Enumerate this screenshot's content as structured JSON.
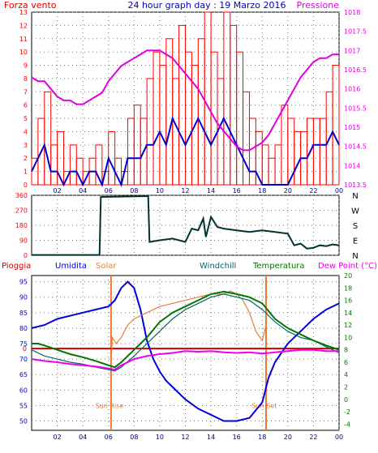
{
  "page": {
    "title": "24 hour graph day : 19 Marzo 2016"
  },
  "colors": {
    "wind": "#ff0000",
    "wind_blue": "#0000cc",
    "pressure": "#e000e0",
    "direction": "#003333",
    "rain": "#cc0000",
    "humidity": "#0000dd",
    "solar": "#e08040",
    "windchill": "#006666",
    "temperature": "#007700",
    "dewpoint": "#ee00ee",
    "sun_line": "#ee7733"
  },
  "chart_data": [
    {
      "type": "line",
      "panel": "wind-pressure",
      "title": "24 hour graph day : 19 Marzo 2016",
      "left_axis_label": "Forza vento",
      "right_axis_label": "Pressione",
      "x_ticks": [
        "02",
        "04",
        "06",
        "08",
        "10",
        "12",
        "14",
        "16",
        "18",
        "20",
        "22",
        "00"
      ],
      "x_tick_hours": [
        2,
        4,
        6,
        8,
        10,
        12,
        14,
        16,
        18,
        20,
        22,
        24
      ],
      "ylim_left": [
        0,
        13
      ],
      "y_ticks_left": [
        "0",
        "1",
        "2",
        "3",
        "4",
        "5",
        "6",
        "7",
        "8",
        "9",
        "10",
        "11",
        "12",
        "13"
      ],
      "ylim_right": [
        1013.5,
        1018
      ],
      "y_ticks_right": [
        "1013.5",
        "1014",
        "1014.5",
        "1015",
        "1015.5",
        "1016",
        "1016.5",
        "1017",
        "1017.5",
        "1018"
      ],
      "series": [
        {
          "key": "pressure",
          "axis": "right",
          "x": [
            0,
            0.5,
            1,
            1.5,
            2,
            2.5,
            3,
            3.5,
            4,
            4.5,
            5,
            5.5,
            6,
            6.5,
            7,
            7.5,
            8,
            8.5,
            9,
            9.5,
            10,
            10.5,
            11,
            11.5,
            12,
            12.5,
            13,
            13.5,
            14,
            14.5,
            15,
            15.5,
            16,
            16.5,
            17,
            17.5,
            18,
            18.5,
            19,
            19.5,
            20,
            20.5,
            21,
            21.5,
            22,
            22.5,
            23,
            23.5,
            24
          ],
          "values": [
            1016.3,
            1016.2,
            1016.2,
            1016.0,
            1015.8,
            1015.7,
            1015.7,
            1015.6,
            1015.6,
            1015.7,
            1015.8,
            1015.9,
            1016.2,
            1016.4,
            1016.6,
            1016.7,
            1016.8,
            1016.9,
            1017.0,
            1017.0,
            1017.0,
            1016.9,
            1016.8,
            1016.6,
            1016.4,
            1016.2,
            1016.0,
            1015.7,
            1015.4,
            1015.1,
            1014.9,
            1014.7,
            1014.5,
            1014.4,
            1014.4,
            1014.5,
            1014.6,
            1014.8,
            1015.1,
            1015.4,
            1015.7,
            1016.0,
            1016.3,
            1016.5,
            1016.7,
            1016.8,
            1016.8,
            1016.9,
            1016.9
          ]
        },
        {
          "key": "wind_gust",
          "axis": "left",
          "x": [
            0,
            0.5,
            1,
            1.5,
            2,
            2.5,
            3,
            3.5,
            4,
            4.5,
            5,
            5.5,
            6,
            6.5,
            7,
            7.5,
            8,
            8.5,
            9,
            9.5,
            10,
            10.5,
            11,
            11.5,
            12,
            12.5,
            13,
            13.5,
            14,
            14.5,
            15,
            15.5,
            16,
            16.5,
            17,
            17.5,
            18,
            18.5,
            19,
            19.5,
            20,
            20.5,
            21,
            21.5,
            22,
            22.5,
            23,
            23.5,
            24
          ],
          "values": [
            2,
            5,
            7,
            3,
            4,
            1,
            3,
            2,
            1,
            2,
            3,
            1,
            4,
            2,
            1,
            5,
            6,
            5,
            8,
            10,
            9,
            11,
            8,
            12,
            10,
            9,
            11,
            13,
            10,
            8,
            13,
            12,
            10,
            7,
            5,
            4,
            3,
            2,
            3,
            6,
            5,
            4,
            4,
            5,
            5,
            5,
            7,
            9,
            6
          ]
        },
        {
          "key": "wind_avg",
          "axis": "left",
          "x": [
            0,
            0.5,
            1,
            1.5,
            2,
            2.5,
            3,
            3.5,
            4,
            4.5,
            5,
            5.5,
            6,
            6.5,
            7,
            7.5,
            8,
            8.5,
            9,
            9.5,
            10,
            10.5,
            11,
            11.5,
            12,
            12.5,
            13,
            13.5,
            14,
            14.5,
            15,
            15.5,
            16,
            16.5,
            17,
            17.5,
            18,
            18.5,
            19,
            19.5,
            20,
            20.5,
            21,
            21.5,
            22,
            22.5,
            23,
            23.5,
            24
          ],
          "values": [
            1,
            2,
            3,
            1,
            1,
            0,
            1,
            1,
            0,
            1,
            1,
            0,
            2,
            1,
            0,
            2,
            2,
            2,
            3,
            3,
            4,
            3,
            5,
            4,
            3,
            4,
            5,
            4,
            3,
            4,
            5,
            4,
            3,
            2,
            1,
            1,
            0,
            0,
            0,
            0,
            0,
            1,
            2,
            2,
            3,
            3,
            3,
            4,
            3
          ]
        }
      ]
    },
    {
      "type": "line",
      "panel": "wind-direction",
      "x_ticks": [
        "02",
        "04",
        "06",
        "08",
        "10",
        "12",
        "14",
        "16",
        "18",
        "20",
        "22",
        "00"
      ],
      "x_tick_hours": [
        2,
        4,
        6,
        8,
        10,
        12,
        14,
        16,
        18,
        20,
        22,
        24
      ],
      "ylim": [
        0,
        360
      ],
      "y_ticks": [
        "0",
        "90",
        "180",
        "270",
        "360"
      ],
      "compass_labels": [
        "N",
        "W",
        "S",
        "E",
        "N"
      ],
      "series": [
        {
          "key": "direction",
          "x": [
            0,
            5.3,
            5.4,
            9.1,
            9.2,
            10,
            11,
            12,
            12.5,
            13,
            13.4,
            13.6,
            14,
            14.5,
            15,
            16,
            17,
            18,
            19,
            20,
            20.5,
            21,
            21.5,
            22,
            22.5,
            23,
            23.5,
            24
          ],
          "values": [
            2,
            2,
            350,
            355,
            80,
            90,
            100,
            80,
            160,
            150,
            220,
            110,
            230,
            170,
            160,
            150,
            140,
            150,
            140,
            130,
            60,
            70,
            40,
            45,
            60,
            55,
            65,
            60
          ]
        }
      ]
    },
    {
      "type": "line",
      "panel": "temperature-humidity",
      "legend": [
        "Pioggia",
        "Umidita",
        "Solar",
        "Windchill",
        "Temperatura",
        "Dew Point (°C)"
      ],
      "x_ticks": [
        "02",
        "04",
        "06",
        "08",
        "10",
        "12",
        "14",
        "16",
        "18",
        "20",
        "22",
        "00"
      ],
      "x_tick_hours": [
        2,
        4,
        6,
        8,
        10,
        12,
        14,
        16,
        18,
        20,
        22,
        24
      ],
      "ylim_left": [
        47,
        97
      ],
      "y_ticks_left": [
        "50",
        "55",
        "60",
        "65",
        "70",
        "75",
        "80",
        "85",
        "90",
        "95"
      ],
      "rain_tick": "0",
      "ylim_right": [
        -5,
        20
      ],
      "y_ticks_right": [
        "-4",
        "-2",
        "0",
        "2",
        "4",
        "6",
        "8",
        "10",
        "12",
        "14",
        "16",
        "18",
        "20"
      ],
      "annotations": [
        {
          "label": "Sun Rise",
          "hour": 6.2
        },
        {
          "label": "Sun Set",
          "hour": 18.3
        }
      ],
      "series": [
        {
          "key": "humidity",
          "axis": "left",
          "x": [
            0,
            1,
            2,
            3,
            4,
            5,
            6,
            6.5,
            7,
            7.5,
            8,
            8.5,
            9,
            9.5,
            10,
            10.5,
            11,
            12,
            13,
            14,
            15,
            16,
            17,
            18,
            18.5,
            19,
            19.5,
            20,
            21,
            22,
            23,
            24
          ],
          "values": [
            80,
            81,
            83,
            84,
            85,
            86,
            87,
            89,
            93,
            95,
            93,
            86,
            76,
            70,
            66,
            63,
            61,
            57,
            54,
            52,
            50,
            50,
            51,
            56,
            64,
            69,
            72,
            75,
            79,
            83,
            86,
            88
          ]
        },
        {
          "key": "solar",
          "axis": "right",
          "x": [
            6.2,
            6.3,
            6.6,
            7,
            7.5,
            8,
            9,
            10,
            11,
            12,
            13,
            14,
            15,
            15.5,
            16,
            16.5,
            17,
            17.5,
            18,
            18.3
          ],
          "values": [
            6,
            10,
            9,
            10,
            12,
            13,
            14,
            15,
            15.5,
            16,
            16.5,
            17,
            17,
            17.5,
            17,
            16,
            14,
            11,
            9.5,
            12
          ]
        },
        {
          "key": "windchill",
          "axis": "right",
          "x": [
            0,
            1,
            2,
            3,
            4,
            5,
            6,
            6.5,
            7,
            8,
            9,
            10,
            11,
            12,
            13,
            14,
            15,
            16,
            17,
            18,
            19,
            20,
            21,
            22,
            23,
            24
          ],
          "values": [
            8,
            7,
            6.5,
            6,
            5.7,
            5.2,
            4.8,
            4.6,
            5.2,
            7,
            9,
            11,
            13,
            14.5,
            15.5,
            16.5,
            17,
            16.5,
            16,
            14.5,
            12.5,
            11,
            10,
            9.5,
            8.5,
            7.5
          ]
        },
        {
          "key": "temperature",
          "axis": "right",
          "x": [
            0,
            0.5,
            1,
            2,
            3,
            4,
            5,
            6,
            6.5,
            7,
            8,
            9,
            10,
            11,
            12,
            13,
            14,
            15,
            16,
            17,
            18,
            19,
            20,
            21,
            22,
            23,
            24
          ],
          "values": [
            9,
            9,
            8.7,
            8,
            7.3,
            6.8,
            6.2,
            5.5,
            5.2,
            6,
            8,
            10,
            12.5,
            14,
            15,
            16,
            17,
            17.4,
            17,
            16.5,
            15.5,
            13,
            11.5,
            10.5,
            9.5,
            8.7,
            8
          ]
        },
        {
          "key": "dewpoint",
          "axis": "right",
          "x": [
            0,
            1,
            2,
            3,
            4,
            5,
            6,
            6.5,
            7,
            8,
            9,
            10,
            11,
            12,
            13,
            14,
            15,
            16,
            17,
            18,
            19,
            20,
            21,
            22,
            23,
            24
          ],
          "values": [
            6.5,
            6.2,
            6,
            5.7,
            5.5,
            5.3,
            5,
            4.8,
            5.5,
            6.5,
            7,
            7.3,
            7.5,
            7.8,
            7.7,
            7.8,
            7.6,
            7.5,
            7.6,
            7.4,
            7.6,
            7.8,
            8,
            8,
            7.8,
            7.8
          ]
        }
      ],
      "rain": {
        "label": "0",
        "value": 0
      }
    }
  ]
}
